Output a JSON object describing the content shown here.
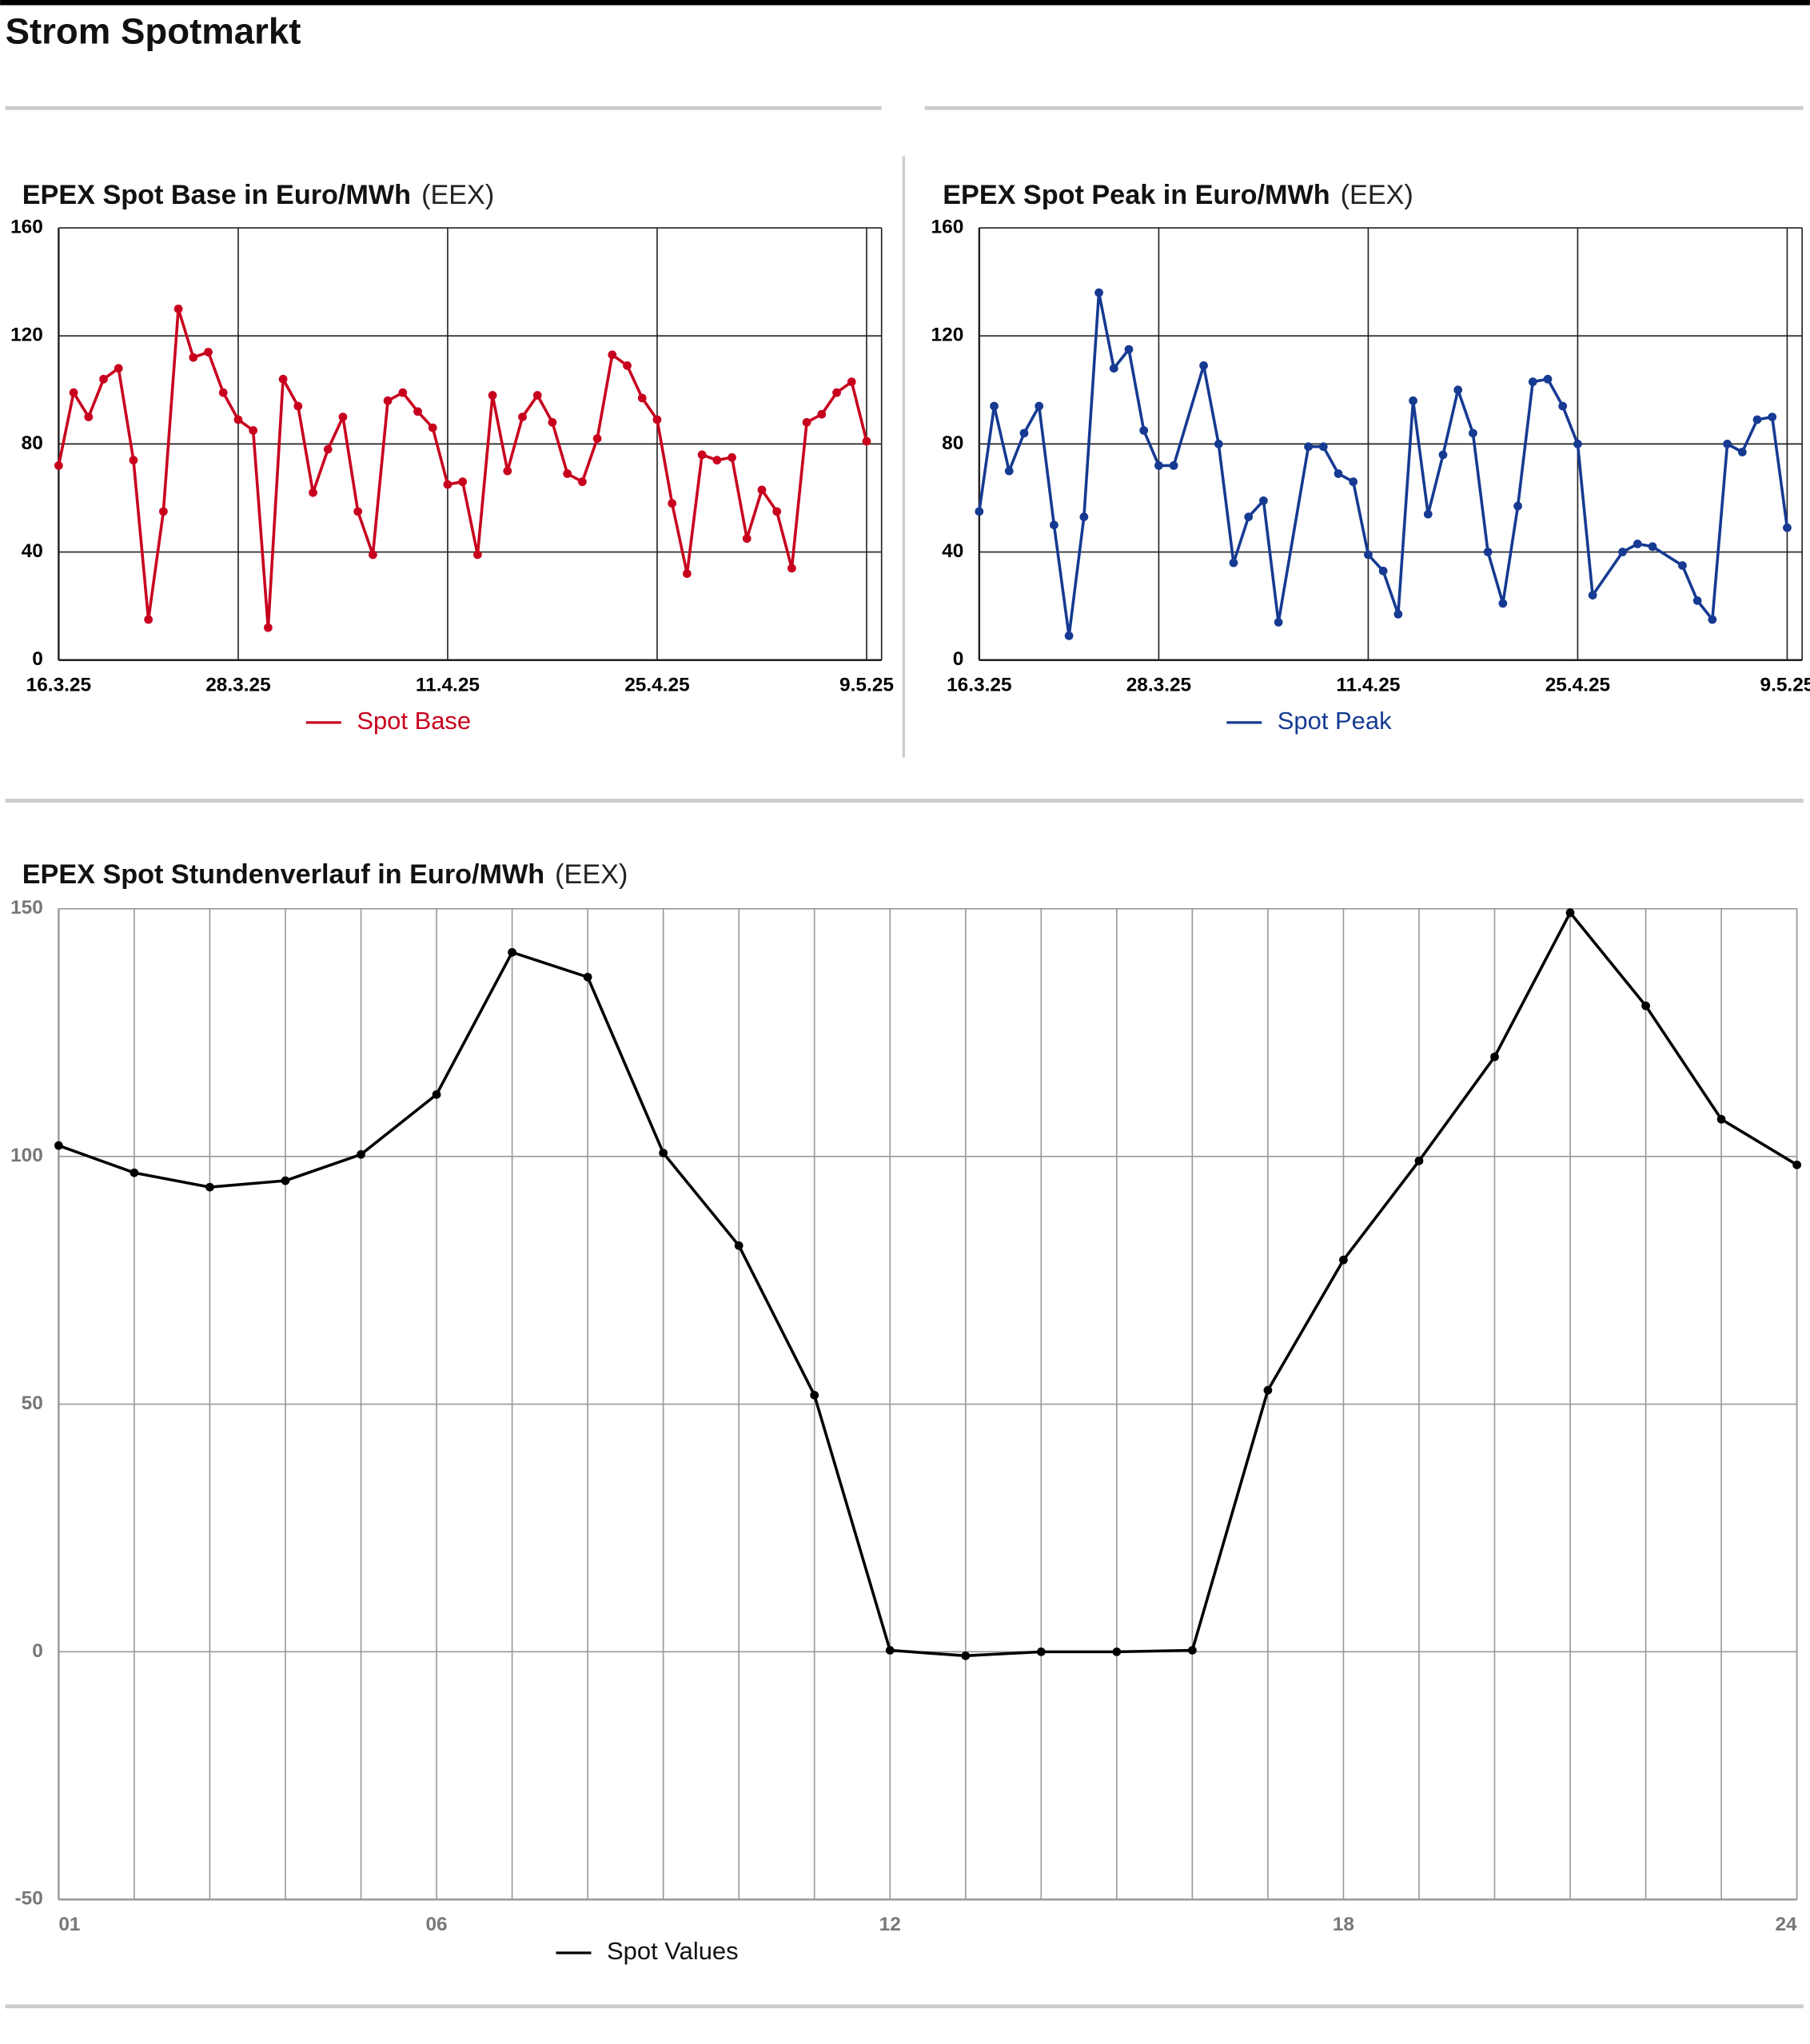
{
  "page_title": "Strom Spotmarkt",
  "chart_data": [
    {
      "type": "line",
      "title": "EPEX Spot Base in Euro/MWh",
      "source": "(EEX)",
      "x": [
        "16.3.25",
        "17.3.25",
        "18.3.25",
        "19.3.25",
        "20.3.25",
        "21.3.25",
        "22.3.25",
        "23.3.25",
        "24.3.25",
        "25.3.25",
        "26.3.25",
        "27.3.25",
        "28.3.25",
        "29.3.25",
        "30.3.25",
        "31.3.25",
        "1.4.25",
        "2.4.25",
        "3.4.25",
        "4.4.25",
        "5.4.25",
        "6.4.25",
        "7.4.25",
        "8.4.25",
        "9.4.25",
        "10.4.25",
        "11.4.25",
        "12.4.25",
        "13.4.25",
        "14.4.25",
        "15.4.25",
        "16.4.25",
        "17.4.25",
        "18.4.25",
        "19.4.25",
        "20.4.25",
        "21.4.25",
        "22.4.25",
        "23.4.25",
        "24.4.25",
        "25.4.25",
        "26.4.25",
        "27.4.25",
        "28.4.25",
        "29.4.25",
        "30.4.25",
        "1.5.25",
        "2.5.25",
        "3.5.25",
        "4.5.25",
        "5.5.25",
        "6.5.25",
        "7.5.25",
        "8.5.25",
        "9.5.25"
      ],
      "series": [
        {
          "name": "Spot Base",
          "color": "#c8001e",
          "values": [
            72,
            99,
            90,
            104,
            108,
            74,
            15,
            55,
            130,
            112,
            114,
            99,
            89,
            85,
            12,
            104,
            94,
            62,
            78,
            90,
            55,
            39,
            96,
            99,
            92,
            86,
            65,
            66,
            39,
            98,
            70,
            90,
            98,
            88,
            69,
            66,
            82,
            113,
            109,
            97,
            89,
            58,
            32,
            76,
            74,
            75,
            45,
            63,
            55,
            34,
            88,
            91,
            99,
            103,
            81
          ]
        }
      ],
      "xlim": [
        "16.3.25",
        "10.5.25"
      ],
      "xticks": [
        "16.3.25",
        "28.3.25",
        "11.4.25",
        "25.4.25",
        "9.5.25"
      ],
      "ylim": [
        0,
        160
      ],
      "yticks": [
        0,
        40,
        80,
        120,
        160
      ],
      "grid": true
    },
    {
      "type": "line",
      "title": "EPEX Spot Peak in Euro/MWh",
      "source": "(EEX)",
      "x": [
        "16.3.25",
        "17.3.25",
        "18.3.25",
        "19.3.25",
        "20.3.25",
        "21.3.25",
        "22.3.25",
        "23.3.25",
        "24.3.25",
        "25.3.25",
        "26.3.25",
        "27.3.25",
        "28.3.25",
        "29.3.25",
        "31.3.25",
        "1.4.25",
        "2.4.25",
        "3.4.25",
        "4.4.25",
        "5.4.25",
        "7.4.25",
        "8.4.25",
        "9.4.25",
        "10.4.25",
        "11.4.25",
        "12.4.25",
        "13.4.25",
        "14.4.25",
        "15.4.25",
        "16.4.25",
        "17.4.25",
        "18.4.25",
        "19.4.25",
        "20.4.25",
        "21.4.25",
        "22.4.25",
        "23.4.25",
        "24.4.25",
        "25.4.25",
        "26.4.25",
        "28.4.25",
        "29.4.25",
        "30.4.25",
        "2.5.25",
        "3.5.25",
        "4.5.25",
        "5.5.25",
        "6.5.25",
        "7.5.25",
        "8.5.25",
        "9.5.25"
      ],
      "series": [
        {
          "name": "Spot Peak",
          "color": "#163a92",
          "values": [
            55,
            94,
            70,
            84,
            94,
            50,
            9,
            53,
            136,
            108,
            115,
            85,
            72,
            72,
            109,
            80,
            36,
            53,
            59,
            14,
            79,
            79,
            69,
            66,
            39,
            33,
            17,
            96,
            54,
            76,
            100,
            84,
            40,
            21,
            57,
            103,
            104,
            94,
            80,
            24,
            40,
            43,
            42,
            35,
            22,
            15,
            80,
            77,
            89,
            90,
            49
          ]
        }
      ],
      "xlim": [
        "16.3.25",
        "10.5.25"
      ],
      "xticks": [
        "16.3.25",
        "28.3.25",
        "11.4.25",
        "25.4.25",
        "9.5.25"
      ],
      "ylim": [
        0,
        160
      ],
      "yticks": [
        0,
        40,
        80,
        120,
        160
      ],
      "grid": true
    },
    {
      "type": "line",
      "title": "EPEX Spot Stundenverlauf in Euro/MWh",
      "source": "(EEX)",
      "categories": [
        "01",
        null,
        null,
        null,
        null,
        "06",
        null,
        null,
        null,
        null,
        null,
        "12",
        null,
        null,
        null,
        null,
        null,
        "18",
        null,
        null,
        null,
        null,
        null,
        "24"
      ],
      "series": [
        {
          "name": "Spot Values",
          "color": "#000000",
          "values": [
            102.2,
            96.7,
            93.8,
            95.1,
            100.4,
            112.5,
            141.2,
            136.2,
            100.7,
            82.0,
            51.8,
            0.3,
            -0.8,
            0,
            0,
            0.3,
            52.8,
            79.1,
            99.1,
            120.1,
            149.2,
            130.4,
            107.5,
            98.3
          ]
        }
      ],
      "ylim": [
        -50,
        150
      ],
      "yticks": [
        -50,
        0,
        50,
        100,
        150
      ],
      "grid": true
    }
  ]
}
